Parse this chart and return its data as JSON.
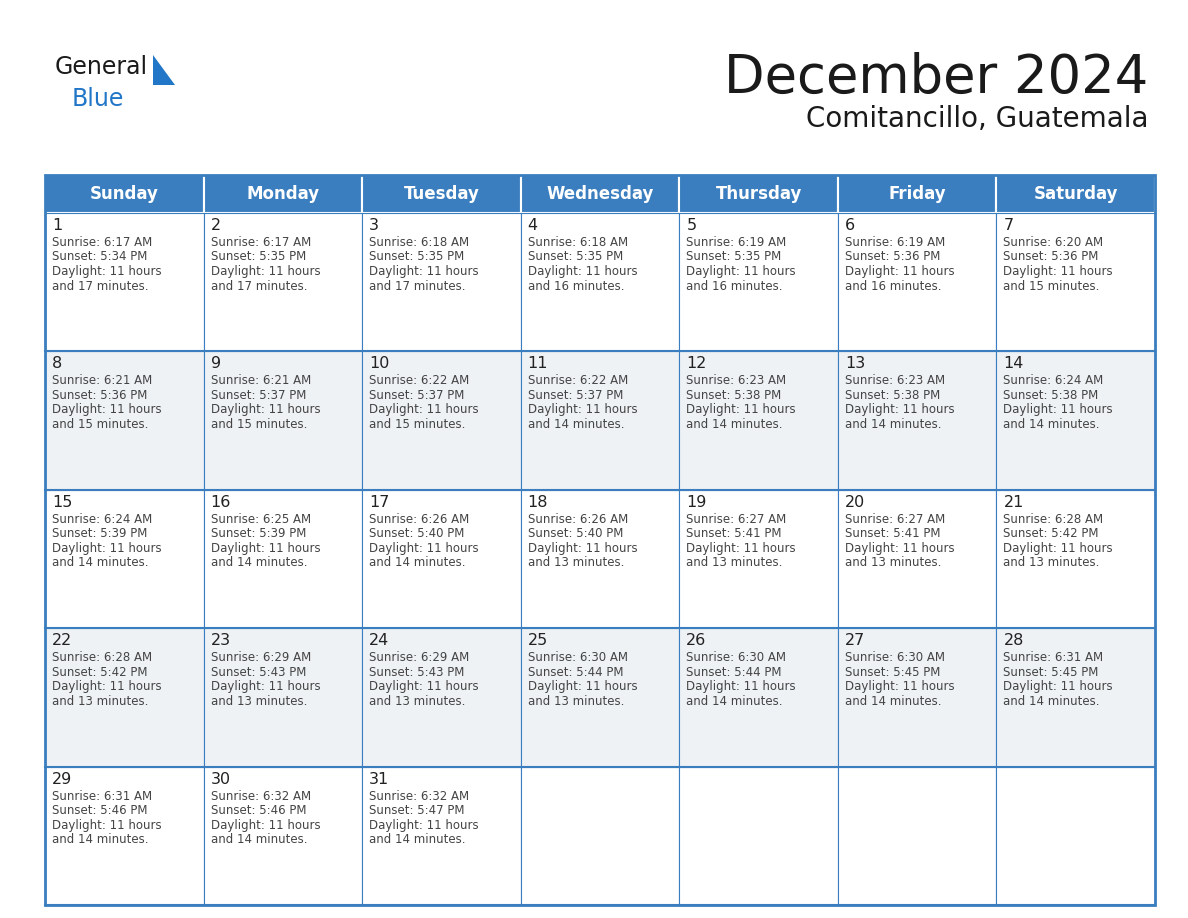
{
  "title": "December 2024",
  "subtitle": "Comitancillo, Guatemala",
  "header_color": "#3a7ebf",
  "header_text_color": "#ffffff",
  "day_names": [
    "Sunday",
    "Monday",
    "Tuesday",
    "Wednesday",
    "Thursday",
    "Friday",
    "Saturday"
  ],
  "cell_bg_white": "#ffffff",
  "cell_bg_gray": "#eef2f5",
  "date_color": "#222222",
  "text_color": "#444444",
  "border_color": "#3a7ebf",
  "logo_general_color": "#1a1a1a",
  "logo_blue_color": "#2176c7",
  "logo_triangle_color": "#2176c7",
  "days": [
    {
      "date": 1,
      "col": 0,
      "row": 0,
      "sunrise": "6:17 AM",
      "sunset": "5:34 PM",
      "dl_min": "17"
    },
    {
      "date": 2,
      "col": 1,
      "row": 0,
      "sunrise": "6:17 AM",
      "sunset": "5:35 PM",
      "dl_min": "17"
    },
    {
      "date": 3,
      "col": 2,
      "row": 0,
      "sunrise": "6:18 AM",
      "sunset": "5:35 PM",
      "dl_min": "17"
    },
    {
      "date": 4,
      "col": 3,
      "row": 0,
      "sunrise": "6:18 AM",
      "sunset": "5:35 PM",
      "dl_min": "16"
    },
    {
      "date": 5,
      "col": 4,
      "row": 0,
      "sunrise": "6:19 AM",
      "sunset": "5:35 PM",
      "dl_min": "16"
    },
    {
      "date": 6,
      "col": 5,
      "row": 0,
      "sunrise": "6:19 AM",
      "sunset": "5:36 PM",
      "dl_min": "16"
    },
    {
      "date": 7,
      "col": 6,
      "row": 0,
      "sunrise": "6:20 AM",
      "sunset": "5:36 PM",
      "dl_min": "15"
    },
    {
      "date": 8,
      "col": 0,
      "row": 1,
      "sunrise": "6:21 AM",
      "sunset": "5:36 PM",
      "dl_min": "15"
    },
    {
      "date": 9,
      "col": 1,
      "row": 1,
      "sunrise": "6:21 AM",
      "sunset": "5:37 PM",
      "dl_min": "15"
    },
    {
      "date": 10,
      "col": 2,
      "row": 1,
      "sunrise": "6:22 AM",
      "sunset": "5:37 PM",
      "dl_min": "15"
    },
    {
      "date": 11,
      "col": 3,
      "row": 1,
      "sunrise": "6:22 AM",
      "sunset": "5:37 PM",
      "dl_min": "14"
    },
    {
      "date": 12,
      "col": 4,
      "row": 1,
      "sunrise": "6:23 AM",
      "sunset": "5:38 PM",
      "dl_min": "14"
    },
    {
      "date": 13,
      "col": 5,
      "row": 1,
      "sunrise": "6:23 AM",
      "sunset": "5:38 PM",
      "dl_min": "14"
    },
    {
      "date": 14,
      "col": 6,
      "row": 1,
      "sunrise": "6:24 AM",
      "sunset": "5:38 PM",
      "dl_min": "14"
    },
    {
      "date": 15,
      "col": 0,
      "row": 2,
      "sunrise": "6:24 AM",
      "sunset": "5:39 PM",
      "dl_min": "14"
    },
    {
      "date": 16,
      "col": 1,
      "row": 2,
      "sunrise": "6:25 AM",
      "sunset": "5:39 PM",
      "dl_min": "14"
    },
    {
      "date": 17,
      "col": 2,
      "row": 2,
      "sunrise": "6:26 AM",
      "sunset": "5:40 PM",
      "dl_min": "14"
    },
    {
      "date": 18,
      "col": 3,
      "row": 2,
      "sunrise": "6:26 AM",
      "sunset": "5:40 PM",
      "dl_min": "13"
    },
    {
      "date": 19,
      "col": 4,
      "row": 2,
      "sunrise": "6:27 AM",
      "sunset": "5:41 PM",
      "dl_min": "13"
    },
    {
      "date": 20,
      "col": 5,
      "row": 2,
      "sunrise": "6:27 AM",
      "sunset": "5:41 PM",
      "dl_min": "13"
    },
    {
      "date": 21,
      "col": 6,
      "row": 2,
      "sunrise": "6:28 AM",
      "sunset": "5:42 PM",
      "dl_min": "13"
    },
    {
      "date": 22,
      "col": 0,
      "row": 3,
      "sunrise": "6:28 AM",
      "sunset": "5:42 PM",
      "dl_min": "13"
    },
    {
      "date": 23,
      "col": 1,
      "row": 3,
      "sunrise": "6:29 AM",
      "sunset": "5:43 PM",
      "dl_min": "13"
    },
    {
      "date": 24,
      "col": 2,
      "row": 3,
      "sunrise": "6:29 AM",
      "sunset": "5:43 PM",
      "dl_min": "13"
    },
    {
      "date": 25,
      "col": 3,
      "row": 3,
      "sunrise": "6:30 AM",
      "sunset": "5:44 PM",
      "dl_min": "13"
    },
    {
      "date": 26,
      "col": 4,
      "row": 3,
      "sunrise": "6:30 AM",
      "sunset": "5:44 PM",
      "dl_min": "14"
    },
    {
      "date": 27,
      "col": 5,
      "row": 3,
      "sunrise": "6:30 AM",
      "sunset": "5:45 PM",
      "dl_min": "14"
    },
    {
      "date": 28,
      "col": 6,
      "row": 3,
      "sunrise": "6:31 AM",
      "sunset": "5:45 PM",
      "dl_min": "14"
    },
    {
      "date": 29,
      "col": 0,
      "row": 4,
      "sunrise": "6:31 AM",
      "sunset": "5:46 PM",
      "dl_min": "14"
    },
    {
      "date": 30,
      "col": 1,
      "row": 4,
      "sunrise": "6:32 AM",
      "sunset": "5:46 PM",
      "dl_min": "14"
    },
    {
      "date": 31,
      "col": 2,
      "row": 4,
      "sunrise": "6:32 AM",
      "sunset": "5:47 PM",
      "dl_min": "14"
    }
  ]
}
